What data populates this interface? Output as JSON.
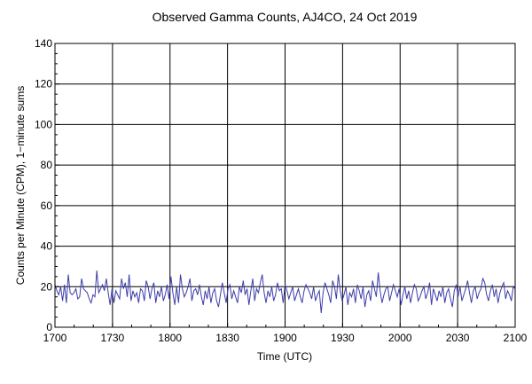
{
  "chart_data": {
    "type": "line",
    "title": "Observed Gamma Counts, AJ4CO, 24 Oct 2019",
    "xlabel": "Time (UTC)",
    "ylabel": "Counts per Minute (CPM), 1−minute sums",
    "ylim": [
      0,
      140
    ],
    "yticks": [
      0,
      20,
      40,
      60,
      80,
      100,
      120,
      140
    ],
    "xlim": [
      0,
      240
    ],
    "xticks": [
      {
        "pos": 0,
        "label": "1700"
      },
      {
        "pos": 30,
        "label": "1730"
      },
      {
        "pos": 60,
        "label": "1800"
      },
      {
        "pos": 90,
        "label": "1830"
      },
      {
        "pos": 120,
        "label": "1900"
      },
      {
        "pos": 150,
        "label": "1930"
      },
      {
        "pos": 180,
        "label": "2000"
      },
      {
        "pos": 210,
        "label": "2030"
      },
      {
        "pos": 240,
        "label": "2100"
      }
    ],
    "grid": true,
    "line_color": "#3c3caa",
    "series": [
      {
        "name": "",
        "values": [
          21,
          18,
          16,
          20,
          13,
          21,
          12,
          26,
          17,
          16,
          17,
          19,
          14,
          15,
          24,
          19,
          18,
          17,
          14,
          12,
          16,
          15,
          28,
          17,
          19,
          21,
          18,
          24,
          17,
          11,
          19,
          12,
          18,
          16,
          14,
          24,
          19,
          22,
          15,
          26,
          13,
          18,
          15,
          17,
          12,
          19,
          18,
          13,
          23,
          20,
          14,
          19,
          22,
          12,
          18,
          15,
          20,
          13,
          16,
          21,
          14,
          25,
          17,
          11,
          20,
          12,
          26,
          19,
          15,
          17,
          20,
          24,
          13,
          18,
          19,
          16,
          21,
          15,
          11,
          18,
          14,
          20,
          12,
          17,
          19,
          13,
          10,
          16,
          22,
          17,
          12,
          19,
          21,
          14,
          18,
          15,
          12,
          20,
          17,
          23,
          16,
          19,
          11,
          18,
          24,
          13,
          19,
          17,
          22,
          26,
          17,
          12,
          18,
          15,
          20,
          13,
          16,
          22,
          18,
          19,
          12,
          21,
          18,
          14,
          17,
          20,
          13,
          16,
          19,
          15,
          12,
          18,
          21,
          19,
          17,
          14,
          20,
          13,
          16,
          18,
          7,
          17,
          22,
          19,
          16,
          12,
          23,
          20,
          14,
          26,
          18,
          13,
          16,
          20,
          11,
          17,
          15,
          19,
          12,
          21,
          18,
          14,
          20,
          10,
          16,
          18,
          13,
          23,
          19,
          15,
          27,
          18,
          12,
          16,
          19,
          20,
          13,
          17,
          21,
          18,
          15,
          19,
          11,
          16,
          20,
          14,
          18,
          12,
          17,
          21,
          19,
          13,
          15,
          18,
          20,
          14,
          17,
          22,
          11,
          19,
          16,
          13,
          18,
          15,
          20,
          12,
          17,
          19,
          14,
          10,
          18,
          21,
          15,
          20,
          13,
          16,
          19,
          23,
          17,
          12,
          18,
          20,
          14,
          17,
          19,
          24,
          22,
          16,
          13,
          18,
          21,
          15,
          19,
          12,
          17,
          20,
          22,
          14,
          18,
          16,
          13,
          20,
          19
        ]
      }
    ]
  }
}
